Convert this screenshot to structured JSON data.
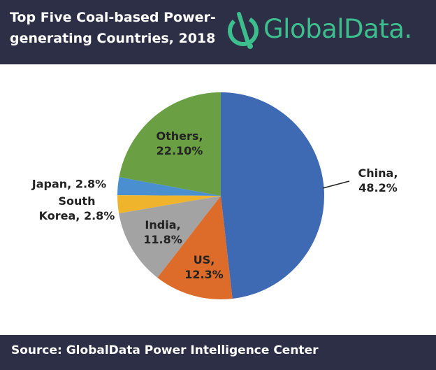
{
  "header": {
    "title": "Top Five Coal-based Power-generating Countries, 2018",
    "logo": "GlobalData."
  },
  "chart_data": {
    "type": "pie",
    "values": [
      48.2,
      12.3,
      11.8,
      2.8,
      2.8,
      22.1
    ],
    "value_labels": [
      "China, 48.2%",
      "US, 12.3%",
      "India, 11.8%",
      "South Korea, 2.8%",
      "Japan, 2.8%",
      "Others, 22.10%"
    ],
    "colors": [
      "#3e69b3",
      "#dd6c2a",
      "#a3a3a3",
      "#efb42c",
      "#4a8fd0",
      "#6aa043"
    ]
  },
  "footer": {
    "source": "Source:  GlobalData Power Intelligence Center"
  }
}
